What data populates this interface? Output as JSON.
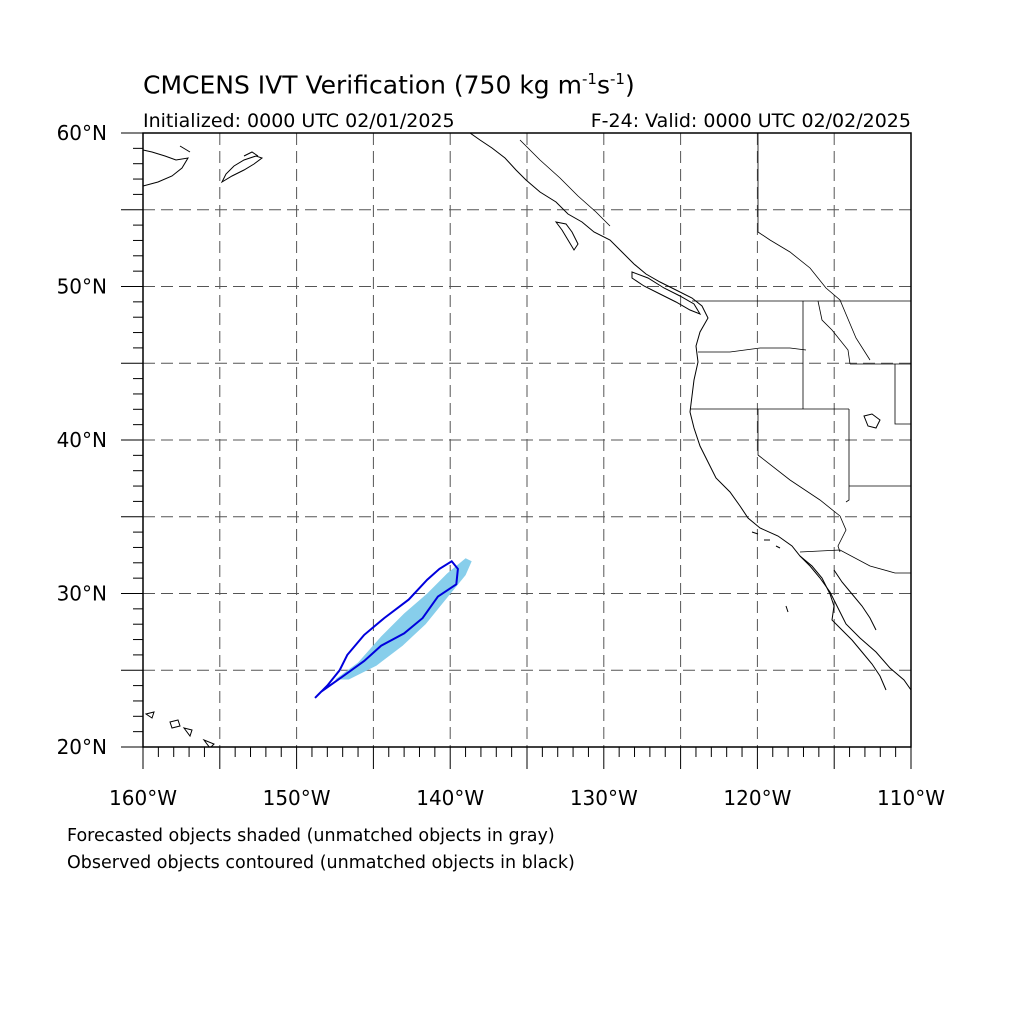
{
  "title": {
    "main": "CMCENS IVT Verification (750 kg m",
    "sup1": "-1",
    "mid": "s",
    "sup2": "-1",
    "close": ")"
  },
  "init_label": "Initialized: 0000 UTC 02/01/2025",
  "valid_label": "F-24: Valid: 0000 UTC 02/02/2025",
  "map": {
    "lon_range": [
      -160,
      -110
    ],
    "lat_range": [
      20,
      60
    ],
    "grid_spacing_deg": 5,
    "grid": "dashed",
    "lat_ticks": [
      {
        "value": 20,
        "label": "20°N"
      },
      {
        "value": 30,
        "label": "30°N"
      },
      {
        "value": 40,
        "label": "40°N"
      },
      {
        "value": 50,
        "label": "50°N"
      },
      {
        "value": 60,
        "label": "60°N"
      }
    ],
    "lon_ticks": [
      {
        "value": -160,
        "label": "160°W"
      },
      {
        "value": -150,
        "label": "150°W"
      },
      {
        "value": -140,
        "label": "140°W"
      },
      {
        "value": -130,
        "label": "130°W"
      },
      {
        "value": -120,
        "label": "120°W"
      },
      {
        "value": -110,
        "label": "110°W"
      }
    ],
    "forecast_color": "#87ceeb",
    "observed_color": "#0000dd",
    "forecast_object": [
      [
        -147.5,
        24.4
      ],
      [
        -146.0,
        25.5
      ],
      [
        -144.5,
        27.2
      ],
      [
        -143.0,
        28.7
      ],
      [
        -141.5,
        30.0
      ],
      [
        -140.2,
        31.3
      ],
      [
        -139.0,
        32.3
      ],
      [
        -138.6,
        32.1
      ],
      [
        -139.0,
        31.2
      ],
      [
        -140.3,
        29.6
      ],
      [
        -141.6,
        28.0
      ],
      [
        -143.1,
        26.6
      ],
      [
        -144.8,
        25.3
      ],
      [
        -146.6,
        24.4
      ]
    ],
    "observed_object": [
      [
        -148.8,
        23.2
      ],
      [
        -148.0,
        24.0
      ],
      [
        -147.2,
        25.0
      ],
      [
        -146.7,
        26.0
      ],
      [
        -145.6,
        27.3
      ],
      [
        -144.3,
        28.4
      ],
      [
        -142.7,
        29.6
      ],
      [
        -141.5,
        30.9
      ],
      [
        -140.7,
        31.6
      ],
      [
        -139.9,
        32.1
      ],
      [
        -139.5,
        31.6
      ],
      [
        -139.6,
        30.6
      ],
      [
        -140.8,
        29.8
      ],
      [
        -141.8,
        28.4
      ],
      [
        -143.0,
        27.4
      ],
      [
        -144.5,
        26.6
      ],
      [
        -145.6,
        25.6
      ],
      [
        -147.0,
        24.6
      ],
      [
        -148.4,
        23.6
      ]
    ]
  },
  "notes": {
    "line1": "Forecasted objects shaded (unmatched objects in gray)",
    "line2": "Observed objects contoured (unmatched objects in black)"
  }
}
